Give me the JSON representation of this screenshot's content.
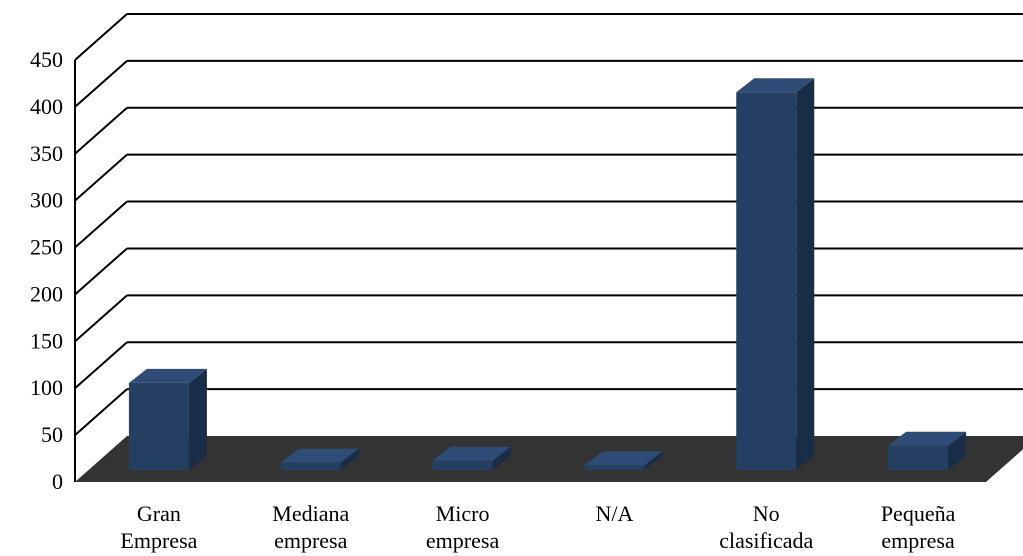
{
  "chart_data": {
    "type": "bar",
    "three_d": true,
    "categories": [
      [
        "Gran",
        "Empresa"
      ],
      [
        "Mediana",
        "empresa"
      ],
      [
        "Micro",
        "empresa"
      ],
      [
        "N/A"
      ],
      [
        "No",
        "clasificada"
      ],
      [
        "Pequeña",
        "empresa"
      ]
    ],
    "values": [
      95,
      10,
      12,
      7,
      405,
      28
    ],
    "ylim": [
      0,
      450
    ],
    "yticks": [
      0,
      50,
      100,
      150,
      200,
      250,
      300,
      350,
      400,
      450
    ],
    "title": "",
    "xlabel": "",
    "ylabel": "",
    "grid": true,
    "legend": "none",
    "colors": {
      "bar_front": "#253F63",
      "bar_side": "#1A2D47",
      "bar_top": "#2E4C75",
      "floor": "#333333",
      "gridline": "#000000"
    }
  }
}
